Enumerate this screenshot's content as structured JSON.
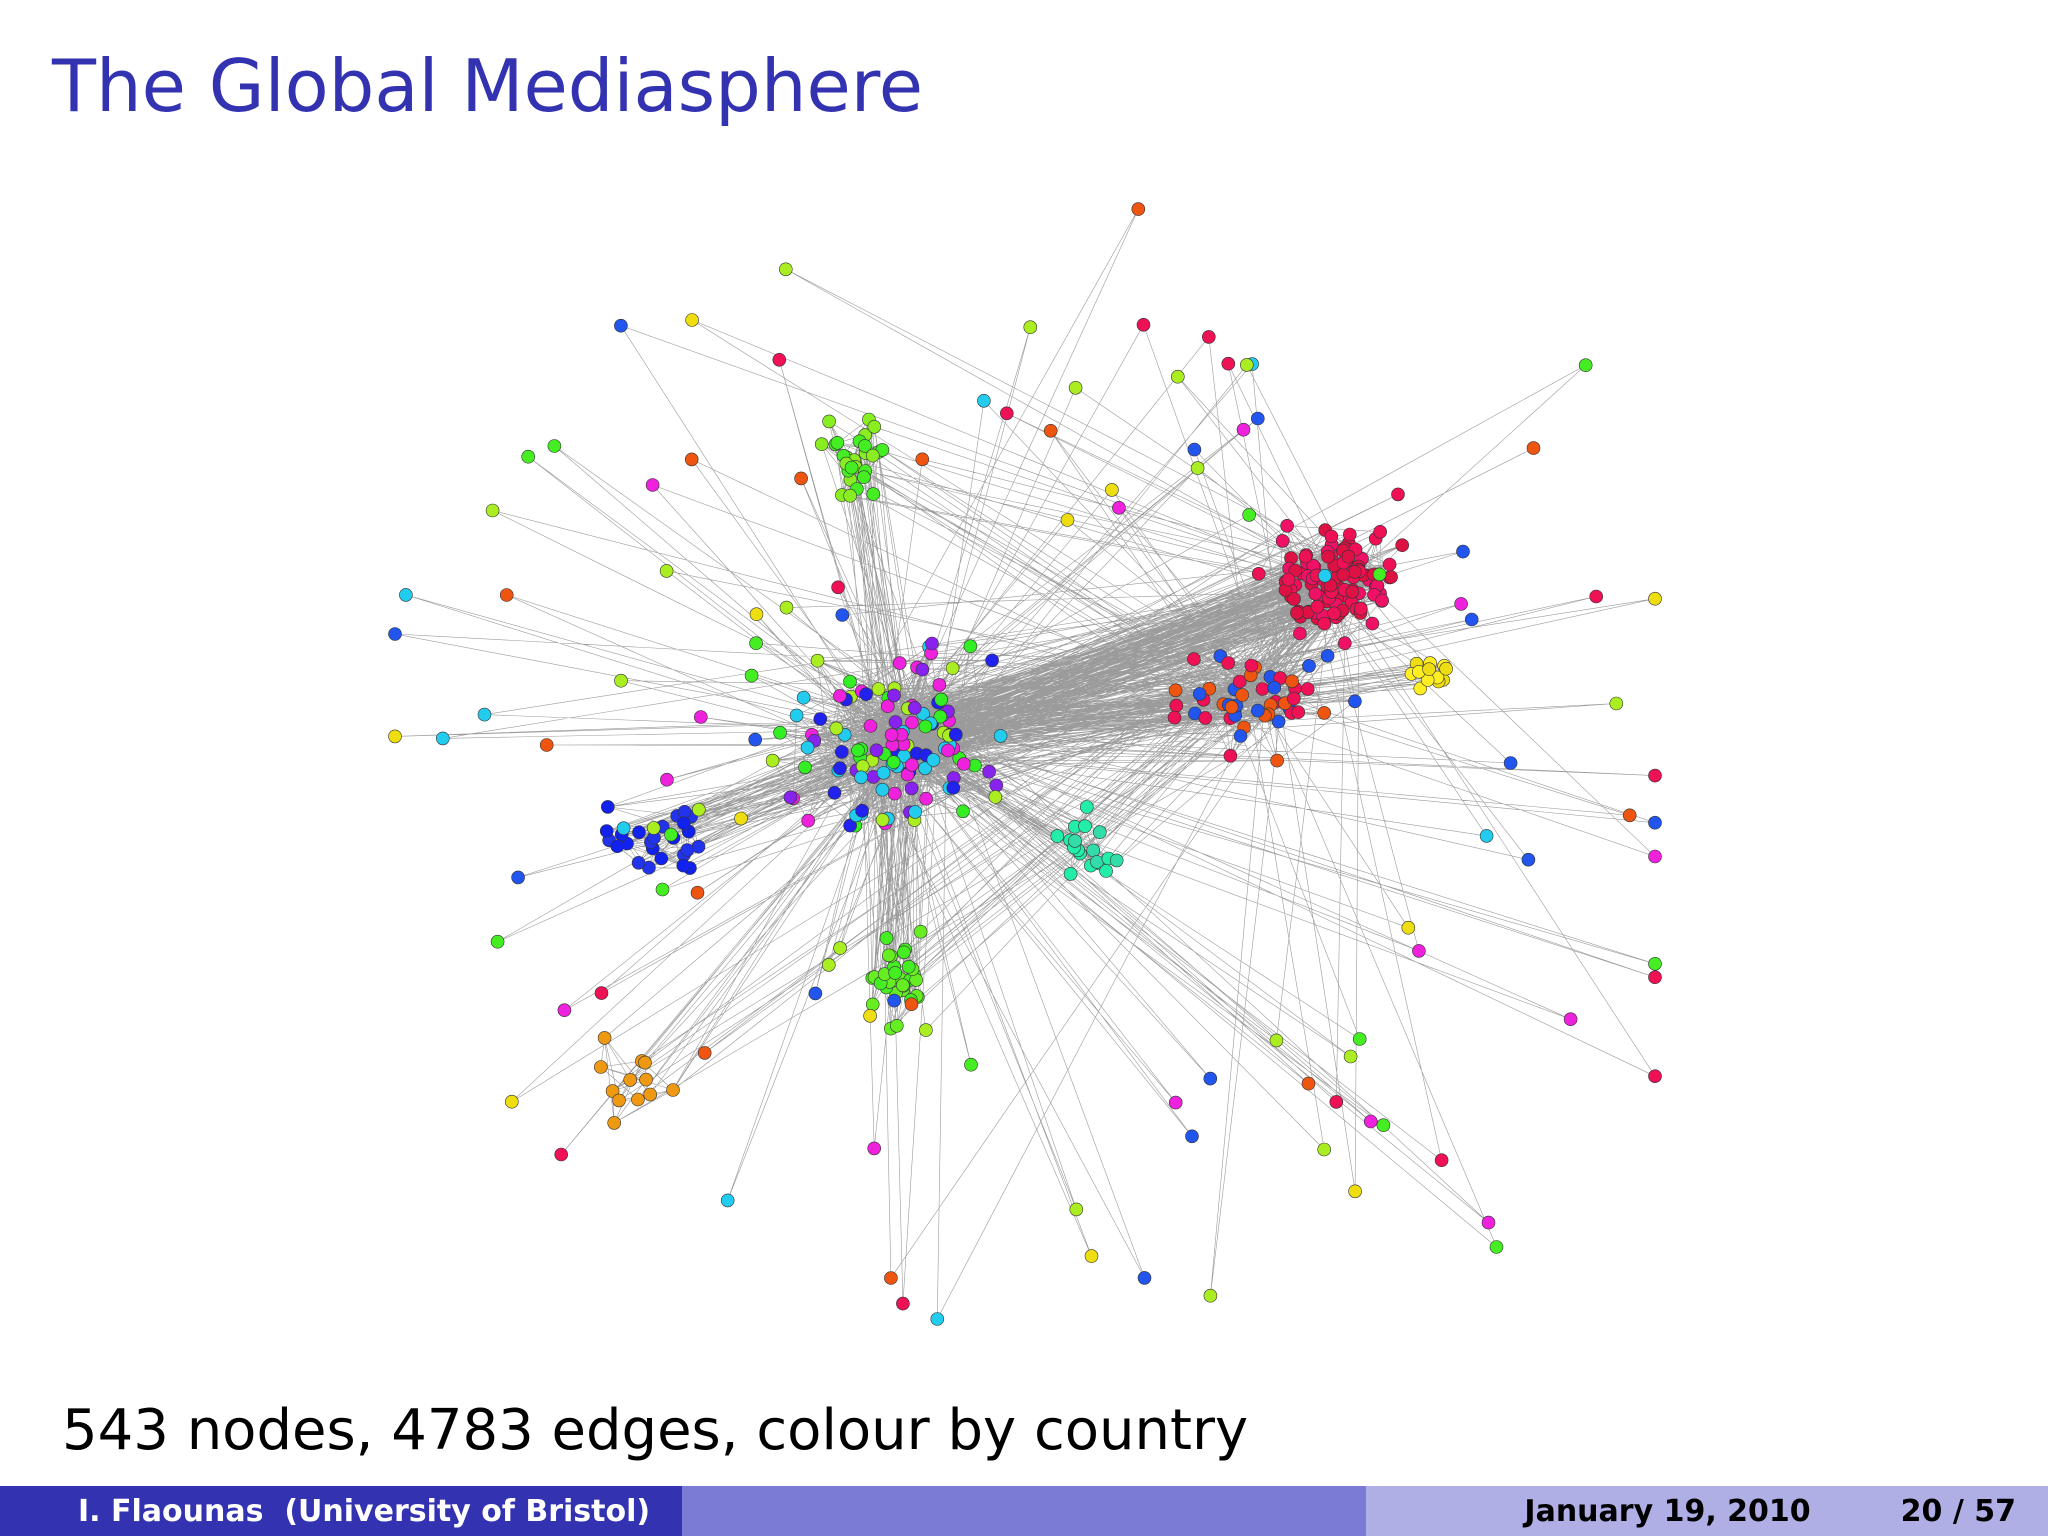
{
  "slide": {
    "title": "The Global Mediasphere",
    "caption": "543 nodes, 4783 edges, colour by country",
    "footer": {
      "author": "I. Flaounas  (University of Bristol)",
      "date": "January 19, 2010",
      "page": "20 / 57"
    }
  }
}
